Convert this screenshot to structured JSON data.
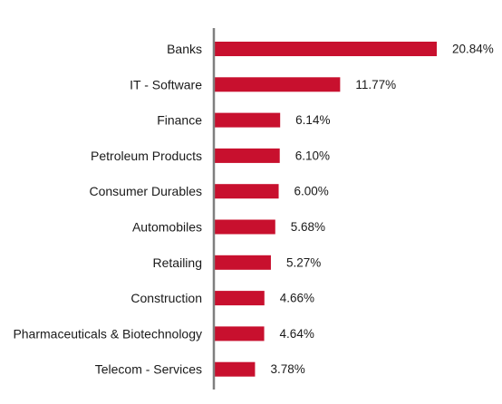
{
  "chart_data": {
    "type": "bar",
    "orientation": "horizontal",
    "title": "",
    "xlabel": "",
    "ylabel": "",
    "categories": [
      "Banks",
      "IT - Software",
      "Finance",
      "Petroleum Products",
      "Consumer Durables",
      "Automobiles",
      "Retailing",
      "Construction",
      "Pharmaceuticals & Biotechnology",
      "Telecom - Services"
    ],
    "values": [
      20.84,
      11.77,
      6.14,
      6.1,
      6.0,
      5.68,
      5.27,
      4.66,
      4.64,
      3.78
    ],
    "value_labels": [
      "20.84%",
      "11.77%",
      "6.14%",
      "6.10%",
      "6.00%",
      "5.68%",
      "5.27%",
      "4.66%",
      "4.64%",
      "3.78%"
    ],
    "xlim": [
      0,
      20.84
    ],
    "grid": false,
    "legend": "none",
    "colors": {
      "bar": "#c8102e",
      "axis": "#7f7f7f",
      "text": "#1a1a1a"
    }
  }
}
